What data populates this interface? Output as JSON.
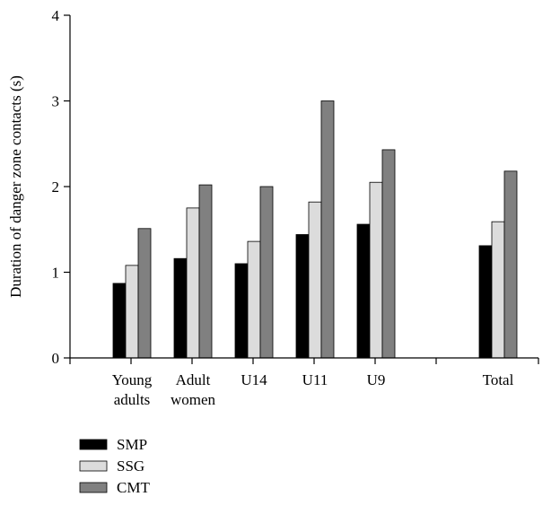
{
  "chart_data": {
    "type": "bar",
    "title": "",
    "xlabel": "",
    "ylabel": "Duration of danger zone contacts (s)",
    "ylim": [
      0,
      4
    ],
    "yticks": [
      0,
      1,
      2,
      3,
      4
    ],
    "grid": false,
    "legend_position": "bottom-left",
    "groups": [
      {
        "label_lines": [
          "Young",
          "adults"
        ]
      },
      {
        "label_lines": [
          "Adult",
          "women"
        ]
      },
      {
        "label_lines": [
          "U14"
        ]
      },
      {
        "label_lines": [
          "U11"
        ]
      },
      {
        "label_lines": [
          "U9"
        ]
      },
      {
        "label_lines": [
          "Total"
        ]
      }
    ],
    "categories": [
      "Young adults",
      "Adult women",
      "U14",
      "U11",
      "U9",
      "Total"
    ],
    "series": [
      {
        "name": "SMP",
        "color": "#000000",
        "values": [
          0.87,
          1.16,
          1.1,
          1.44,
          1.56,
          1.31
        ]
      },
      {
        "name": "SSG",
        "color": "#dcdcdc",
        "values": [
          1.08,
          1.75,
          1.36,
          1.82,
          2.05,
          1.59
        ]
      },
      {
        "name": "CMT",
        "color": "#808080",
        "values": [
          1.51,
          2.02,
          2.0,
          3.0,
          2.43,
          2.18
        ]
      }
    ]
  }
}
